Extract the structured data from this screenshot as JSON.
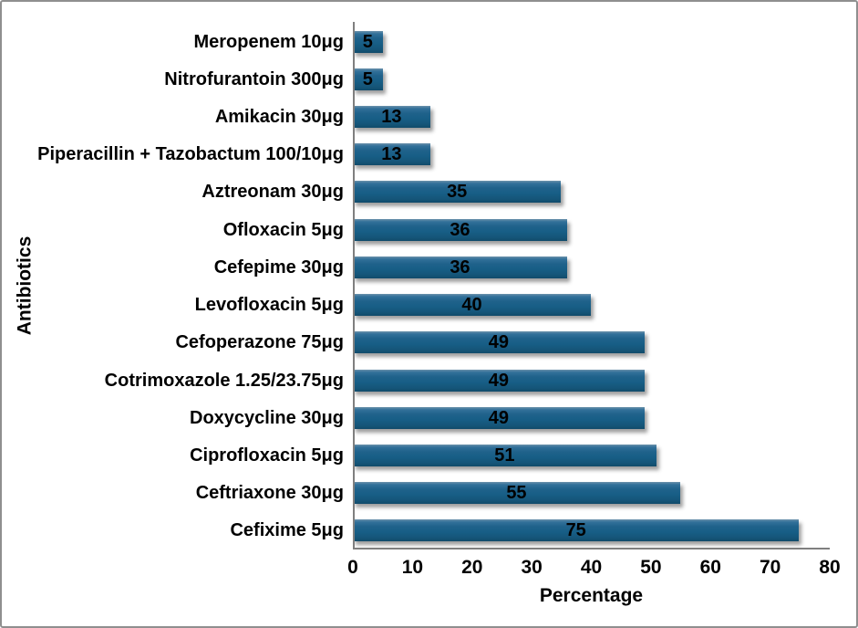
{
  "chart_data": {
    "type": "bar",
    "orientation": "horizontal",
    "title": "",
    "xlabel": "Percentage",
    "ylabel": "Antibiotics",
    "xlim": [
      0,
      80
    ],
    "x_ticks": [
      "0",
      "10",
      "20",
      "30",
      "40",
      "50",
      "60",
      "70",
      "80"
    ],
    "grid": false,
    "legend_position": "none",
    "data_labels": "inside-center",
    "categories": [
      "Meropenem 10μg",
      "Nitrofurantoin 300μg",
      "Amikacin 30μg",
      "Piperacillin + Tazobactum 100/10μg",
      "Aztreonam 30μg",
      "Ofloxacin 5μg",
      "Cefepime 30μg",
      "Levofloxacin 5μg",
      "Cefoperazone 75μg",
      "Cotrimoxazole 1.25/23.75μg",
      "Doxycycline 30μg",
      "Ciprofloxacin 5μg",
      "Ceftriaxone 30μg",
      "Cefixime 5μg"
    ],
    "values": [
      5,
      5,
      13,
      13,
      35,
      36,
      36,
      40,
      49,
      49,
      49,
      51,
      55,
      75
    ]
  },
  "colors": {
    "bar_main": "#175e86",
    "bar_highlight": "#6b91ab",
    "bar_dark": "#114b6a",
    "axis_line": "#7f7f7f",
    "frame_border": "#8f8f8f",
    "text": "#000000",
    "background": "#ffffff"
  }
}
